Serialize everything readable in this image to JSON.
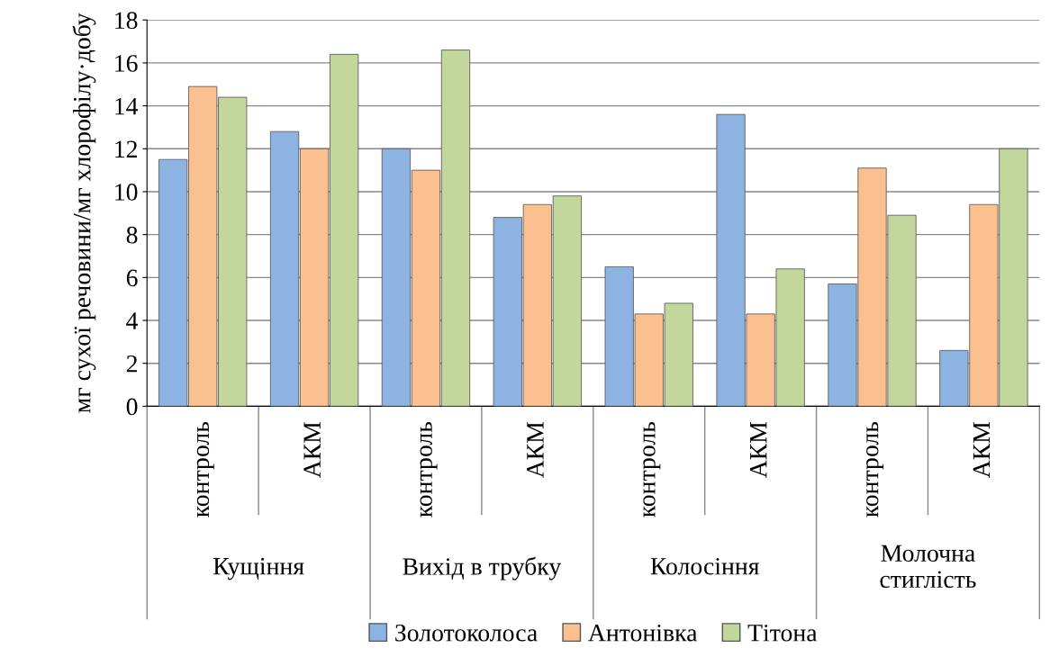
{
  "chart_data": {
    "type": "bar",
    "ylabel": "мг сухої речовини/мг хлорофілу·добу",
    "categories": [
      "контроль",
      "АКМ",
      "контроль",
      "АКМ",
      "контроль",
      "АКМ",
      "контроль",
      "АКМ"
    ],
    "series": [
      {
        "name": "Золотоколоса",
        "color": "#8db3e2",
        "values": [
          11.5,
          12.8,
          12.0,
          8.8,
          6.5,
          13.6,
          5.7,
          2.6
        ]
      },
      {
        "name": "Антонівка",
        "color": "#fac090",
        "values": [
          14.9,
          12.0,
          11.0,
          9.4,
          4.3,
          4.3,
          11.1,
          9.4
        ]
      },
      {
        "name": "Тітона",
        "color": "#c3d69b",
        "values": [
          14.4,
          16.4,
          16.6,
          9.8,
          4.8,
          6.4,
          8.9,
          12.0
        ]
      }
    ],
    "annotations": [
      "Кущіння",
      "Вихід в трубку",
      "Колосіння",
      "Молочна\nстиглість"
    ],
    "ylim": [
      0,
      18
    ],
    "yticks": [
      0,
      2,
      4,
      6,
      8,
      10,
      12,
      14,
      16,
      18
    ],
    "grid": "y",
    "legend": "bottom"
  }
}
